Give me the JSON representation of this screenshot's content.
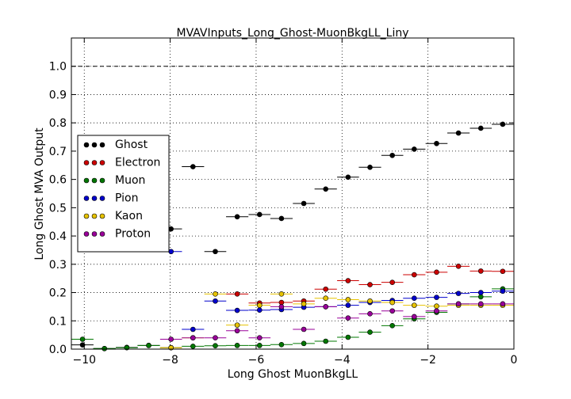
{
  "chart_data": {
    "type": "errorbar",
    "title": "MVAVInputs_Long_Ghost-MuonBkgLL_Liny",
    "x_label": "Long Ghost MuonBkgLL",
    "y_label": "Long Ghost MVA Output",
    "x": [
      -10.04,
      -9.53,
      -9.01,
      -8.5,
      -7.98,
      -7.47,
      -6.95,
      -6.44,
      -5.92,
      -5.41,
      -4.89,
      -4.38,
      -3.86,
      -3.35,
      -2.83,
      -2.32,
      -1.8,
      -1.29,
      -0.77,
      -0.26
    ],
    "xlim": [
      -10.3,
      0
    ],
    "ylim": [
      0,
      1.1
    ],
    "xticks": [
      {
        "value": -10,
        "label": "−10"
      },
      {
        "value": -8,
        "label": "−8"
      },
      {
        "value": -6,
        "label": "−6"
      },
      {
        "value": -4,
        "label": "−4"
      },
      {
        "value": -2,
        "label": "−2"
      },
      0
    ],
    "yticks": [
      {
        "value": 0,
        "label": "0.0"
      },
      {
        "value": 0.1,
        "label": "0.1"
      },
      {
        "value": 0.2,
        "label": "0.2"
      },
      {
        "value": 0.3,
        "label": "0.3"
      },
      {
        "value": 0.4,
        "label": "0.4"
      },
      {
        "value": 0.5,
        "label": "0.5"
      },
      {
        "value": 0.6,
        "label": "0.6"
      },
      {
        "value": 0.7,
        "label": "0.7"
      },
      {
        "value": 0.8,
        "label": "0.8"
      },
      {
        "value": 0.9,
        "label": "0.9"
      },
      {
        "value": 1.0,
        "label": "1.0"
      }
    ],
    "reference_line": 1.0,
    "grid": true,
    "legend": "center left",
    "series": [
      {
        "name": "Ghost",
        "color": "#000000",
        "values": [
          0.015,
          0.002,
          0.006,
          0.013,
          0.425,
          0.645,
          0.345,
          0.468,
          0.476,
          0.462,
          0.515,
          0.566,
          0.608,
          0.643,
          0.685,
          0.707,
          0.727,
          0.764,
          0.781,
          0.795
        ]
      },
      {
        "name": "Electron",
        "color": "#cc0000",
        "values": [
          null,
          null,
          null,
          null,
          0.005,
          null,
          null,
          0.195,
          0.163,
          0.165,
          0.17,
          0.212,
          0.242,
          0.228,
          0.236,
          0.263,
          0.272,
          0.293,
          0.276,
          0.275
        ]
      },
      {
        "name": "Muon",
        "color": "#007700",
        "values": [
          0.035,
          0.002,
          0.005,
          0.013,
          0.005,
          0.01,
          0.012,
          0.013,
          0.013,
          0.016,
          0.02,
          0.028,
          0.042,
          0.06,
          0.083,
          0.107,
          0.13,
          0.16,
          0.185,
          0.213
        ]
      },
      {
        "name": "Pion",
        "color": "#0000cc",
        "values": [
          null,
          null,
          null,
          null,
          0.345,
          0.07,
          0.17,
          0.137,
          0.138,
          0.14,
          0.148,
          0.15,
          0.155,
          0.165,
          0.172,
          0.18,
          0.183,
          0.197,
          0.2,
          0.205
        ]
      },
      {
        "name": "Kaon",
        "color": "#e6c200",
        "values": [
          null,
          null,
          null,
          null,
          0.005,
          0.04,
          0.195,
          0.085,
          0.155,
          0.195,
          0.16,
          0.18,
          0.175,
          0.17,
          0.165,
          0.155,
          0.152,
          0.155,
          0.155,
          0.155
        ]
      },
      {
        "name": "Proton",
        "color": "#990099",
        "values": [
          null,
          null,
          null,
          null,
          0.035,
          0.04,
          0.04,
          0.065,
          0.04,
          0.15,
          0.07,
          0.15,
          0.11,
          0.125,
          0.135,
          0.115,
          0.135,
          0.16,
          0.16,
          0.16
        ]
      }
    ]
  }
}
